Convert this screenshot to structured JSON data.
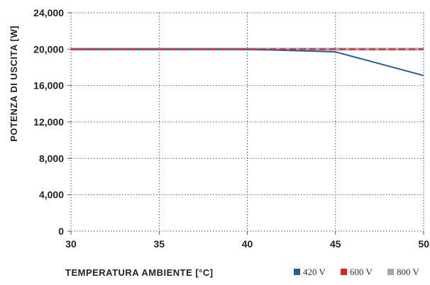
{
  "chart_data": {
    "type": "line",
    "xlabel": "TEMPERATURA AMBIENTE [°C]",
    "ylabel": "POTENZA DI USCITA [W]",
    "xlim": [
      30,
      50
    ],
    "ylim": [
      0,
      24000
    ],
    "x_ticks": [
      30,
      35,
      40,
      45,
      50
    ],
    "x_tick_labels": [
      "30",
      "35",
      "40",
      "45",
      "50"
    ],
    "y_ticks": [
      0,
      4000,
      8000,
      12000,
      16000,
      20000,
      24000
    ],
    "y_tick_labels": [
      "0",
      "4,000",
      "8,000",
      "12,000",
      "16,000",
      "20,000",
      "24,000"
    ],
    "grid": "dotted",
    "legend_position": "bottom-right",
    "series": [
      {
        "name": "800 V",
        "color": "#a6a6a6",
        "dash": "solid",
        "x": [
          30,
          50
        ],
        "y": [
          20000,
          20000
        ]
      },
      {
        "name": "420 V",
        "color": "#1f5fa8",
        "dash": "solid",
        "x": [
          30,
          40,
          45,
          50
        ],
        "y": [
          20000,
          20000,
          19700,
          17100
        ]
      },
      {
        "name": "600 V",
        "color": "#e0202b",
        "dash": "dashed",
        "x": [
          30,
          50
        ],
        "y": [
          20000,
          20000
        ]
      }
    ],
    "legend_order": [
      "420 V",
      "600 V",
      "800 V"
    ]
  }
}
